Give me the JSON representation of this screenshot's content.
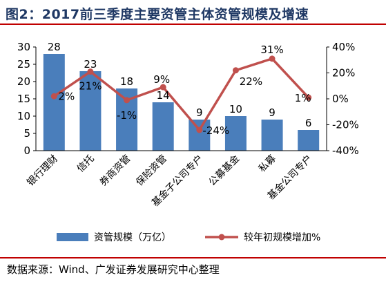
{
  "title": "图2：2017前三季度主要资管主体资管规模及增速",
  "source": "数据来源：Wind、广发证券发展研究中心整理",
  "colors": {
    "bar": "#4a7ebb",
    "line": "#c0504d",
    "title": "#1f3864",
    "rule": "#c00000"
  },
  "chart_data": {
    "type": "bar+line",
    "categories": [
      "银行理财",
      "信托",
      "券商资管",
      "保险资管",
      "基金子公司专户",
      "公募基金",
      "私募",
      "基金公司专户"
    ],
    "series": [
      {
        "name": "资管规模（万亿）",
        "type": "bar",
        "axis": "left",
        "values": [
          28,
          23,
          18,
          14,
          9,
          10,
          9,
          6
        ],
        "labels": [
          "28",
          "23",
          "18",
          "14",
          "9",
          "10",
          "9",
          "6"
        ]
      },
      {
        "name": "较年初规模增加%",
        "type": "line",
        "axis": "right",
        "values": [
          2,
          21,
          -1,
          9,
          -24,
          22,
          31,
          1
        ],
        "labels": [
          "2%",
          "21%",
          "-1%",
          "9%",
          "-24%",
          "22%",
          "31%",
          "1%"
        ]
      }
    ],
    "y_left": {
      "min": 0,
      "max": 30,
      "ticks": [
        0,
        5,
        10,
        15,
        20,
        25,
        30
      ]
    },
    "y_right": {
      "min": -40,
      "max": 40,
      "ticks": [
        "-40%",
        "-20%",
        "0%",
        "20%",
        "40%"
      ]
    },
    "grid": false,
    "legend": "bottom"
  }
}
